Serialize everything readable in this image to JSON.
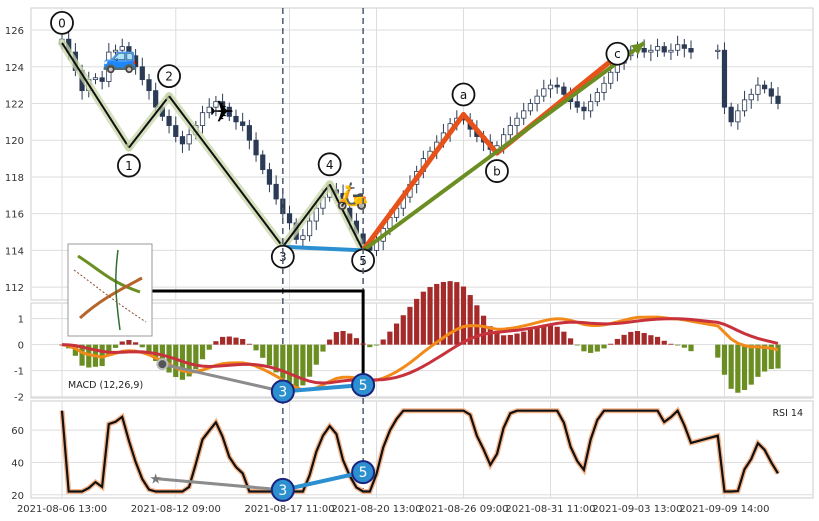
{
  "chart_data": {
    "type": "candlestick",
    "panels": {
      "price": {
        "ylim": [
          111.3,
          127.2
        ],
        "yticks": [
          112,
          114,
          116,
          118,
          120,
          122,
          124,
          126
        ]
      },
      "macd": {
        "label": "MACD (12,26,9)",
        "ylim": [
          -2.05,
          1.6
        ],
        "yticks": [
          1,
          0,
          -1,
          -2
        ]
      },
      "rsi": {
        "label": "RSI 14",
        "ylim": [
          18,
          78
        ],
        "yticks": [
          60,
          40,
          20
        ]
      }
    },
    "x_range": [
      0,
      107
    ],
    "xtick_labels": [
      {
        "label": "2021-08-06 13:00",
        "x": 0
      },
      {
        "label": "2021-08-12 09:00",
        "x": 17
      },
      {
        "label": "2021-08-17 11:00",
        "x": 34
      },
      {
        "label": "2021-08-20 13:00",
        "x": 47
      },
      {
        "label": "2021-08-26 09:00",
        "x": 60
      },
      {
        "label": "2021-08-31 11:00",
        "x": 73
      },
      {
        "label": "2021-09-03 13:00",
        "x": 86
      },
      {
        "label": "2021-09-09 14:00",
        "x": 99
      }
    ],
    "close_series": [
      125.5,
      124.8,
      123.8,
      122.7,
      123.3,
      123.4,
      123.2,
      124.8,
      124.9,
      125.1,
      124.6,
      124.0,
      123.3,
      122.7,
      121.8,
      121.3,
      120.8,
      120.2,
      119.8,
      120.3,
      120.8,
      121.5,
      121.8,
      122.1,
      121.8,
      121.3,
      121.0,
      120.8,
      120.0,
      119.2,
      118.4,
      117.6,
      116.8,
      116.0,
      115.5,
      114.6,
      114.8,
      115.6,
      116.3,
      116.9,
      117.3,
      117.1,
      116.3,
      115.6,
      114.9,
      114.3,
      114.0,
      114.5,
      115.2,
      115.8,
      116.3,
      116.9,
      117.6,
      118.3,
      119.0,
      119.4,
      119.9,
      120.4,
      120.9,
      121.2,
      121.1,
      120.6,
      120.2,
      119.9,
      119.5,
      119.7,
      120.3,
      120.8,
      121.2,
      121.6,
      122.0,
      122.4,
      122.8,
      123.0,
      122.9,
      122.5,
      122.1,
      121.8,
      121.6,
      122.1,
      122.6,
      123.1,
      123.7,
      124.2,
      124.6,
      124.9,
      125.0,
      124.8,
      124.9,
      125.1,
      124.8,
      124.9,
      125.2,
      125.0,
      124.8,
      124.9,
      124.8,
      124.9,
      124.9,
      121.8,
      121.0,
      121.6,
      122.2,
      122.5,
      123.0,
      122.8,
      122.4,
      122.0
    ],
    "close_series_present_to": 107,
    "close_gap": [
      [
        95,
        97
      ]
    ],
    "wave_points": [
      {
        "label": "0",
        "x": 0,
        "y": 125.3
      },
      {
        "label": "1",
        "x": 10,
        "y": 119.6
      },
      {
        "label": "2",
        "x": 16,
        "y": 122.4
      },
      {
        "label": "3",
        "x": 33,
        "y": 114.2
      },
      {
        "label": "4",
        "x": 40,
        "y": 117.6
      },
      {
        "label": "5",
        "x": 45,
        "y": 114.0
      }
    ],
    "abc_points": [
      {
        "label": "a",
        "x": 60,
        "y": 121.4
      },
      {
        "label": "b",
        "x": 65,
        "y": 119.3
      },
      {
        "label": "c",
        "x": 83,
        "y": 124.6
      }
    ],
    "projection_line": {
      "from": {
        "x": 45,
        "y": 114.0
      },
      "to": {
        "x": 87,
        "y": 125.3
      }
    },
    "divergence": {
      "price_low": {
        "from": {
          "x": 33,
          "y": 114.2
        },
        "to": {
          "x": 45,
          "y": 114.0
        }
      },
      "macd": {
        "from": {
          "label": "3",
          "x": 33,
          "y": -1.8
        },
        "to": {
          "label": "5",
          "x": 45,
          "y": -1.55
        },
        "ref": {
          "x": 15,
          "y": -0.75
        }
      },
      "rsi": {
        "from": {
          "label": "3",
          "x": 33,
          "y": 23
        },
        "to": {
          "label": "5",
          "x": 45,
          "y": 34
        },
        "ref": {
          "x": 14,
          "y": 30
        }
      }
    },
    "vlines_x": [
      33,
      45
    ],
    "grid": true
  }
}
